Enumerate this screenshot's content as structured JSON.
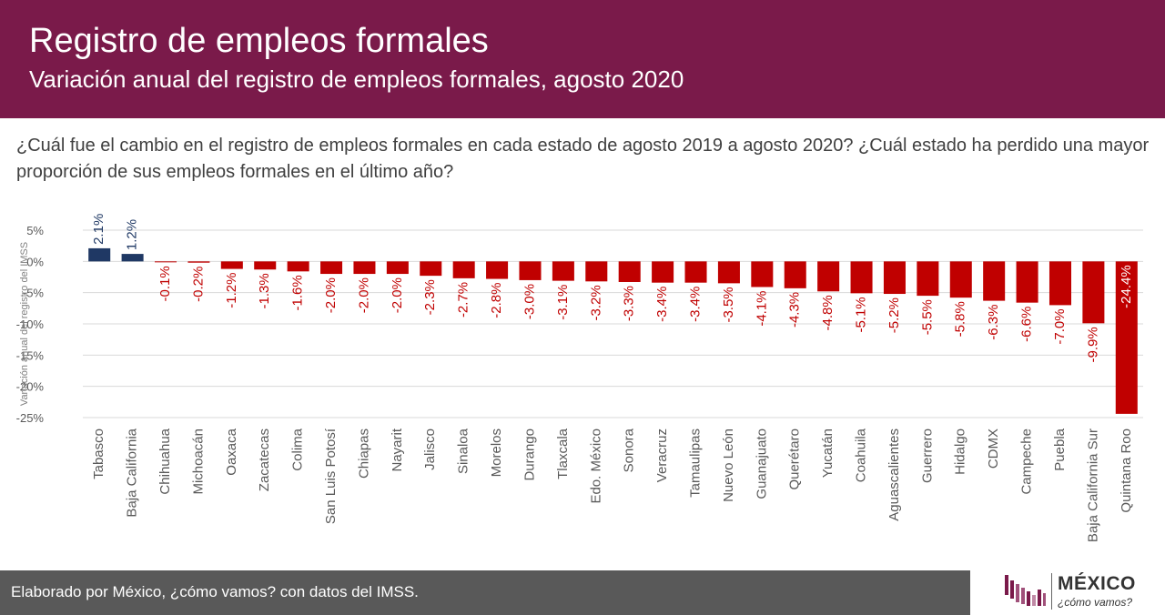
{
  "header": {
    "title": "Registro de empleos formales",
    "subtitle": "Variación anual del registro de empleos formales, agosto 2020"
  },
  "question": "¿Cuál fue el cambio en el registro de empleos formales en cada estado de agosto 2019 a agosto 2020? ¿Cuál estado ha perdido una mayor proporción de sus empleos formales en el último año?",
  "footer": {
    "text": "Elaborado por México, ¿cómo vamos? con datos del IMSS."
  },
  "logo": {
    "word": "MÉXICO",
    "tagline": "¿cómo vamos?"
  },
  "colors": {
    "header": "#7a1a4a",
    "positive": "#1f3864",
    "negative": "#c00000",
    "footer": "#595959"
  },
  "chart_data": {
    "type": "bar",
    "ylabel": "Variación anual del registro del IMSS",
    "ylim": [
      -25,
      5
    ],
    "yticks": [
      5,
      0,
      -5,
      -10,
      -15,
      -20,
      -25
    ],
    "ytick_labels": [
      "5%",
      "0%",
      "-5%",
      "-10%",
      "-15%",
      "-20%",
      "-25%"
    ],
    "grid": true,
    "categories": [
      "Tabasco",
      "Baja California",
      "Chihuahua",
      "Michoacán",
      "Oaxaca",
      "Zacatecas",
      "Colima",
      "San Luis Potosí",
      "Chiapas",
      "Nayarit",
      "Jalisco",
      "Sinaloa",
      "Morelos",
      "Durango",
      "Tlaxcala",
      "Edo. México",
      "Sonora",
      "Veracruz",
      "Tamaulipas",
      "Nuevo León",
      "Guanajuato",
      "Querétaro",
      "Yucatán",
      "Coahuila",
      "Aguascalientes",
      "Guerrero",
      "Hidalgo",
      "CDMX",
      "Campeche",
      "Puebla",
      "Baja California Sur",
      "Quintana Roo"
    ],
    "values": [
      2.1,
      1.2,
      -0.1,
      -0.2,
      -1.2,
      -1.3,
      -1.6,
      -2.0,
      -2.0,
      -2.0,
      -2.3,
      -2.7,
      -2.8,
      -3.0,
      -3.1,
      -3.2,
      -3.3,
      -3.4,
      -3.4,
      -3.5,
      -4.1,
      -4.3,
      -4.8,
      -5.1,
      -5.2,
      -5.5,
      -5.8,
      -6.3,
      -6.6,
      -7.0,
      -9.9,
      -24.4
    ],
    "data_labels": [
      "2.1%",
      "1.2%",
      "-0.1%",
      "-0.2%",
      "-1.2%",
      "-1.3%",
      "-1.6%",
      "-2.0%",
      "-2.0%",
      "-2.0%",
      "-2.3%",
      "-2.7%",
      "-2.8%",
      "-3.0%",
      "-3.1%",
      "-3.2%",
      "-3.3%",
      "-3.4%",
      "-3.4%",
      "-3.5%",
      "-4.1%",
      "-4.3%",
      "-4.8%",
      "-5.1%",
      "-5.2%",
      "-5.5%",
      "-5.8%",
      "-6.3%",
      "-6.6%",
      "-7.0%",
      "-9.9%",
      "-24.4%"
    ]
  }
}
